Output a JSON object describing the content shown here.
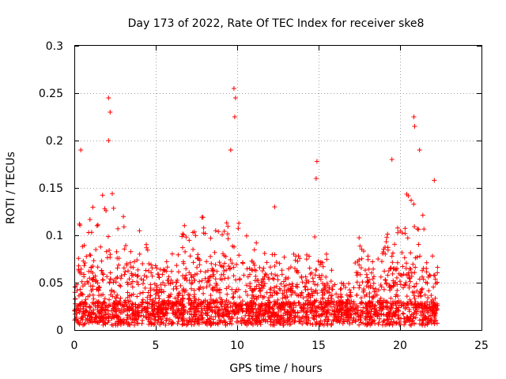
{
  "chart_data": {
    "type": "scatter",
    "title": "Day 173 of 2022, Rate Of TEC Index for receiver ske8",
    "xlabel": "GPS time / hours",
    "ylabel": "ROTI / TECUs",
    "xlim": [
      0,
      25
    ],
    "ylim": [
      0,
      0.3
    ],
    "x_ticks": [
      0,
      5,
      10,
      15,
      20,
      25
    ],
    "x_tick_labels": [
      "0",
      "5",
      "10",
      "15",
      "20",
      "25"
    ],
    "y_ticks": [
      0,
      0.05,
      0.1,
      0.15,
      0.2,
      0.25,
      0.3
    ],
    "y_tick_labels": [
      "0",
      "0.05",
      "0.1",
      "0.15",
      "0.2",
      "0.25",
      "0.3"
    ],
    "grid": true,
    "marker": "+",
    "series_color": "#ff0000",
    "data_x_range": [
      0,
      22.3
    ],
    "notable_points": [
      {
        "x": 2.1,
        "y": 0.245
      },
      {
        "x": 2.2,
        "y": 0.23
      },
      {
        "x": 2.1,
        "y": 0.2
      },
      {
        "x": 0.4,
        "y": 0.19
      },
      {
        "x": 9.8,
        "y": 0.255
      },
      {
        "x": 9.9,
        "y": 0.245
      },
      {
        "x": 9.85,
        "y": 0.225
      },
      {
        "x": 9.6,
        "y": 0.19
      },
      {
        "x": 14.9,
        "y": 0.178
      },
      {
        "x": 14.85,
        "y": 0.16
      },
      {
        "x": 20.85,
        "y": 0.225
      },
      {
        "x": 20.9,
        "y": 0.215
      },
      {
        "x": 21.2,
        "y": 0.19
      },
      {
        "x": 19.5,
        "y": 0.18
      },
      {
        "x": 22.1,
        "y": 0.158
      },
      {
        "x": 12.3,
        "y": 0.13
      }
    ],
    "envelope": [
      {
        "x": 0.0,
        "y": 0.1
      },
      {
        "x": 0.5,
        "y": 0.14
      },
      {
        "x": 1.5,
        "y": 0.14
      },
      {
        "x": 2.2,
        "y": 0.16
      },
      {
        "x": 3.0,
        "y": 0.12
      },
      {
        "x": 4.0,
        "y": 0.12
      },
      {
        "x": 5.0,
        "y": 0.07
      },
      {
        "x": 6.0,
        "y": 0.08
      },
      {
        "x": 7.0,
        "y": 0.12
      },
      {
        "x": 8.0,
        "y": 0.12
      },
      {
        "x": 9.0,
        "y": 0.11
      },
      {
        "x": 9.8,
        "y": 0.15
      },
      {
        "x": 10.5,
        "y": 0.11
      },
      {
        "x": 11.5,
        "y": 0.09
      },
      {
        "x": 12.5,
        "y": 0.09
      },
      {
        "x": 13.5,
        "y": 0.08
      },
      {
        "x": 14.5,
        "y": 0.08
      },
      {
        "x": 15.0,
        "y": 0.12
      },
      {
        "x": 16.0,
        "y": 0.05
      },
      {
        "x": 17.0,
        "y": 0.05
      },
      {
        "x": 17.5,
        "y": 0.1
      },
      {
        "x": 18.5,
        "y": 0.07
      },
      {
        "x": 19.5,
        "y": 0.12
      },
      {
        "x": 20.5,
        "y": 0.15
      },
      {
        "x": 21.0,
        "y": 0.14
      },
      {
        "x": 21.5,
        "y": 0.12
      },
      {
        "x": 22.3,
        "y": 0.08
      }
    ],
    "baseline": {
      "min": 0.005,
      "max": 0.03
    }
  }
}
